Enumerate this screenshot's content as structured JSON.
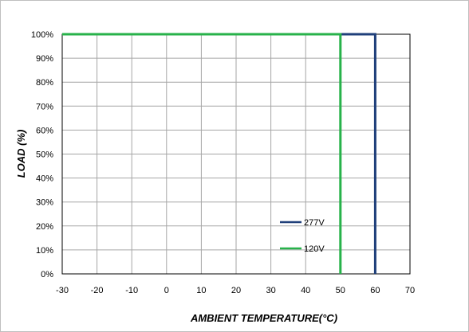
{
  "chart_data": {
    "type": "line",
    "title": "",
    "xlabel": "AMBIENT TEMPERATURE(°C)",
    "ylabel": "LOAD (%)",
    "xlim": [
      -30,
      70
    ],
    "ylim": [
      0,
      100
    ],
    "x_ticks": [
      -30,
      -20,
      -10,
      0,
      10,
      20,
      30,
      40,
      50,
      60,
      70
    ],
    "y_ticks": [
      0,
      10,
      20,
      30,
      40,
      50,
      60,
      70,
      80,
      90,
      100
    ],
    "y_tick_suffix": "%",
    "grid": true,
    "legend_position": "bottom-right",
    "series": [
      {
        "name": "277V",
        "color": "#1f3f7a",
        "x": [
          -30,
          60,
          60
        ],
        "y": [
          100,
          100,
          0
        ]
      },
      {
        "name": "120V",
        "color": "#27b24a",
        "x": [
          -30,
          50,
          50
        ],
        "y": [
          100,
          100,
          0
        ]
      }
    ]
  }
}
